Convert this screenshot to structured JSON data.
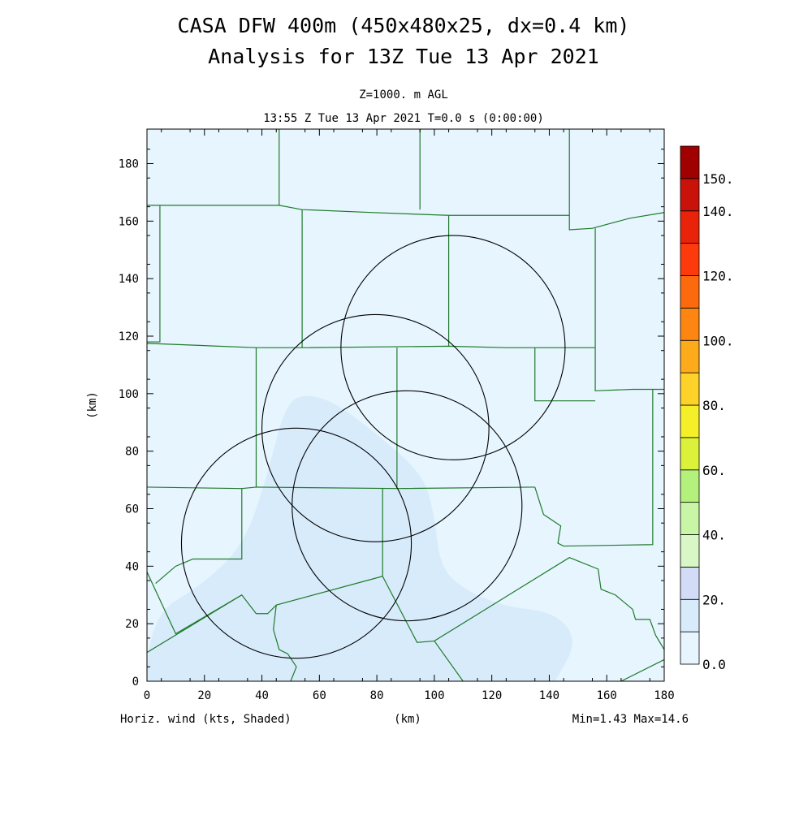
{
  "title_line1": "CASA DFW 400m (450x480x25, dx=0.4 km)",
  "title_line2": "Analysis for 13Z Tue 13 Apr 2021",
  "subtitle_line1": "Z=1000. m AGL",
  "subtitle_line2": "13:55 Z Tue 13 Apr 2021   T=0.0 s (0:00:00)",
  "footer": {
    "left": "Horiz. wind (kts, Shaded)",
    "center": "(km)",
    "right": "Min=1.43 Max=14.6"
  },
  "colors": {
    "background_field": "#e6f5fe",
    "wind_shade": "#d8ebfb",
    "boundary": "#1f7a2a",
    "radar_ring": "#000000"
  },
  "chart_data": {
    "type": "heatmap",
    "xlabel": "(km)",
    "ylabel": "(km)",
    "xlim": [
      0,
      180
    ],
    "ylim": [
      0,
      192
    ],
    "xticks": [
      0,
      20,
      40,
      60,
      80,
      100,
      120,
      140,
      160,
      180
    ],
    "yticks": [
      0,
      20,
      40,
      60,
      80,
      100,
      120,
      140,
      160,
      180
    ],
    "field": "Horiz. wind (kts)",
    "min": 1.43,
    "max": 14.6,
    "shaded_region_10_20_kts": [
      [
        0,
        0
      ],
      [
        0,
        22
      ],
      [
        20,
        34
      ],
      [
        34,
        48
      ],
      [
        42,
        72
      ],
      [
        47,
        92
      ],
      [
        52,
        100
      ],
      [
        64,
        98
      ],
      [
        80,
        86
      ],
      [
        96,
        72
      ],
      [
        100,
        58
      ],
      [
        102,
        40
      ],
      [
        110,
        32
      ],
      [
        124,
        26
      ],
      [
        142,
        24
      ],
      [
        150,
        14
      ],
      [
        142,
        0
      ]
    ],
    "radar_rings": [
      {
        "cx": 106.5,
        "cy": 116,
        "r": 39
      },
      {
        "cx": 79.5,
        "cy": 88,
        "r": 39.5
      },
      {
        "cx": 90.5,
        "cy": 61,
        "r": 40
      },
      {
        "cx": 52,
        "cy": 48,
        "r": 40
      }
    ],
    "county_boundaries": [
      [
        [
          0,
          165.5
        ],
        [
          46,
          165.5
        ],
        [
          54,
          164
        ],
        [
          78,
          163
        ],
        [
          105,
          162
        ],
        [
          147,
          162
        ],
        [
          147,
          157
        ],
        [
          155,
          157.5
        ],
        [
          168,
          161
        ],
        [
          180,
          163
        ]
      ],
      [
        [
          4.5,
          165.5
        ],
        [
          4.5,
          118
        ],
        [
          0,
          118
        ]
      ],
      [
        [
          0,
          117.5
        ],
        [
          38,
          116
        ],
        [
          55,
          116
        ],
        [
          105,
          116.5
        ],
        [
          125,
          116
        ],
        [
          156,
          116
        ]
      ],
      [
        [
          46,
          192
        ],
        [
          46,
          165.5
        ]
      ],
      [
        [
          54,
          164
        ],
        [
          54,
          116
        ]
      ],
      [
        [
          95,
          192
        ],
        [
          95,
          164
        ]
      ],
      [
        [
          147,
          192
        ],
        [
          147,
          162
        ]
      ],
      [
        [
          105,
          162
        ],
        [
          105,
          116.5
        ]
      ],
      [
        [
          156,
          157.5
        ],
        [
          156,
          116
        ],
        [
          156,
          101
        ],
        [
          169,
          101.5
        ],
        [
          180,
          101.5
        ]
      ],
      [
        [
          38,
          116
        ],
        [
          38,
          67.5
        ]
      ],
      [
        [
          87,
          116
        ],
        [
          87,
          67
        ]
      ],
      [
        [
          135,
          116
        ],
        [
          135,
          97.5
        ],
        [
          156,
          97.5
        ]
      ],
      [
        [
          0,
          67.5
        ],
        [
          33,
          67
        ],
        [
          38,
          67.5
        ],
        [
          87,
          67
        ],
        [
          135,
          67.5
        ]
      ],
      [
        [
          135,
          67.5
        ],
        [
          138,
          58
        ],
        [
          144,
          54
        ],
        [
          143,
          48
        ],
        [
          145,
          47
        ],
        [
          176,
          47.5
        ],
        [
          176,
          101.5
        ]
      ],
      [
        [
          33,
          67
        ],
        [
          33,
          42.5
        ],
        [
          16,
          42.5
        ],
        [
          10,
          40
        ],
        [
          3,
          34
        ]
      ],
      [
        [
          0,
          38
        ],
        [
          10,
          16.5
        ],
        [
          33,
          30
        ],
        [
          38,
          23.5
        ],
        [
          42,
          23.5
        ],
        [
          45,
          26.5
        ],
        [
          82,
          36.5
        ],
        [
          82,
          67
        ]
      ],
      [
        [
          82,
          36.5
        ],
        [
          94,
          13.5
        ],
        [
          100,
          14
        ],
        [
          147,
          43
        ],
        [
          157,
          39
        ],
        [
          158,
          32
        ],
        [
          163,
          30
        ],
        [
          169,
          25
        ],
        [
          170,
          21.5
        ],
        [
          175,
          21.5
        ],
        [
          177,
          16
        ],
        [
          180,
          11
        ]
      ],
      [
        [
          33,
          30
        ],
        [
          0,
          10
        ]
      ],
      [
        [
          45,
          26.5
        ],
        [
          44,
          18
        ],
        [
          46,
          11
        ],
        [
          49,
          9.5
        ],
        [
          52,
          5
        ],
        [
          50,
          0
        ]
      ],
      [
        [
          100,
          14
        ],
        [
          110,
          0
        ]
      ],
      [
        [
          165,
          0
        ],
        [
          180,
          7.5
        ]
      ]
    ]
  },
  "colorbar": {
    "labels": [
      "150.",
      "140.",
      "120.",
      "100.",
      "80.",
      "60.",
      "40.",
      "20.",
      "0.0"
    ],
    "label_values": [
      150,
      140,
      120,
      100,
      80,
      60,
      40,
      20,
      0
    ],
    "bins": [
      {
        "lo": 0,
        "hi": 10,
        "color": "#e6f5fe"
      },
      {
        "lo": 10,
        "hi": 20,
        "color": "#d8ebfb"
      },
      {
        "lo": 20,
        "hi": 30,
        "color": "#d3dcf7"
      },
      {
        "lo": 30,
        "hi": 40,
        "color": "#d9f7c6"
      },
      {
        "lo": 40,
        "hi": 50,
        "color": "#c9f5a6"
      },
      {
        "lo": 50,
        "hi": 60,
        "color": "#b3f07c"
      },
      {
        "lo": 60,
        "hi": 70,
        "color": "#dcf23a"
      },
      {
        "lo": 70,
        "hi": 80,
        "color": "#f5ef2a"
      },
      {
        "lo": 80,
        "hi": 90,
        "color": "#fed228"
      },
      {
        "lo": 90,
        "hi": 100,
        "color": "#fdab1b"
      },
      {
        "lo": 100,
        "hi": 110,
        "color": "#fc8611"
      },
      {
        "lo": 110,
        "hi": 120,
        "color": "#fd6a0e"
      },
      {
        "lo": 120,
        "hi": 130,
        "color": "#fd3a0c"
      },
      {
        "lo": 130,
        "hi": 140,
        "color": "#e8230a"
      },
      {
        "lo": 140,
        "hi": 150,
        "color": "#c8120a"
      },
      {
        "lo": 150,
        "hi": 160,
        "color": "#a00000"
      }
    ]
  }
}
